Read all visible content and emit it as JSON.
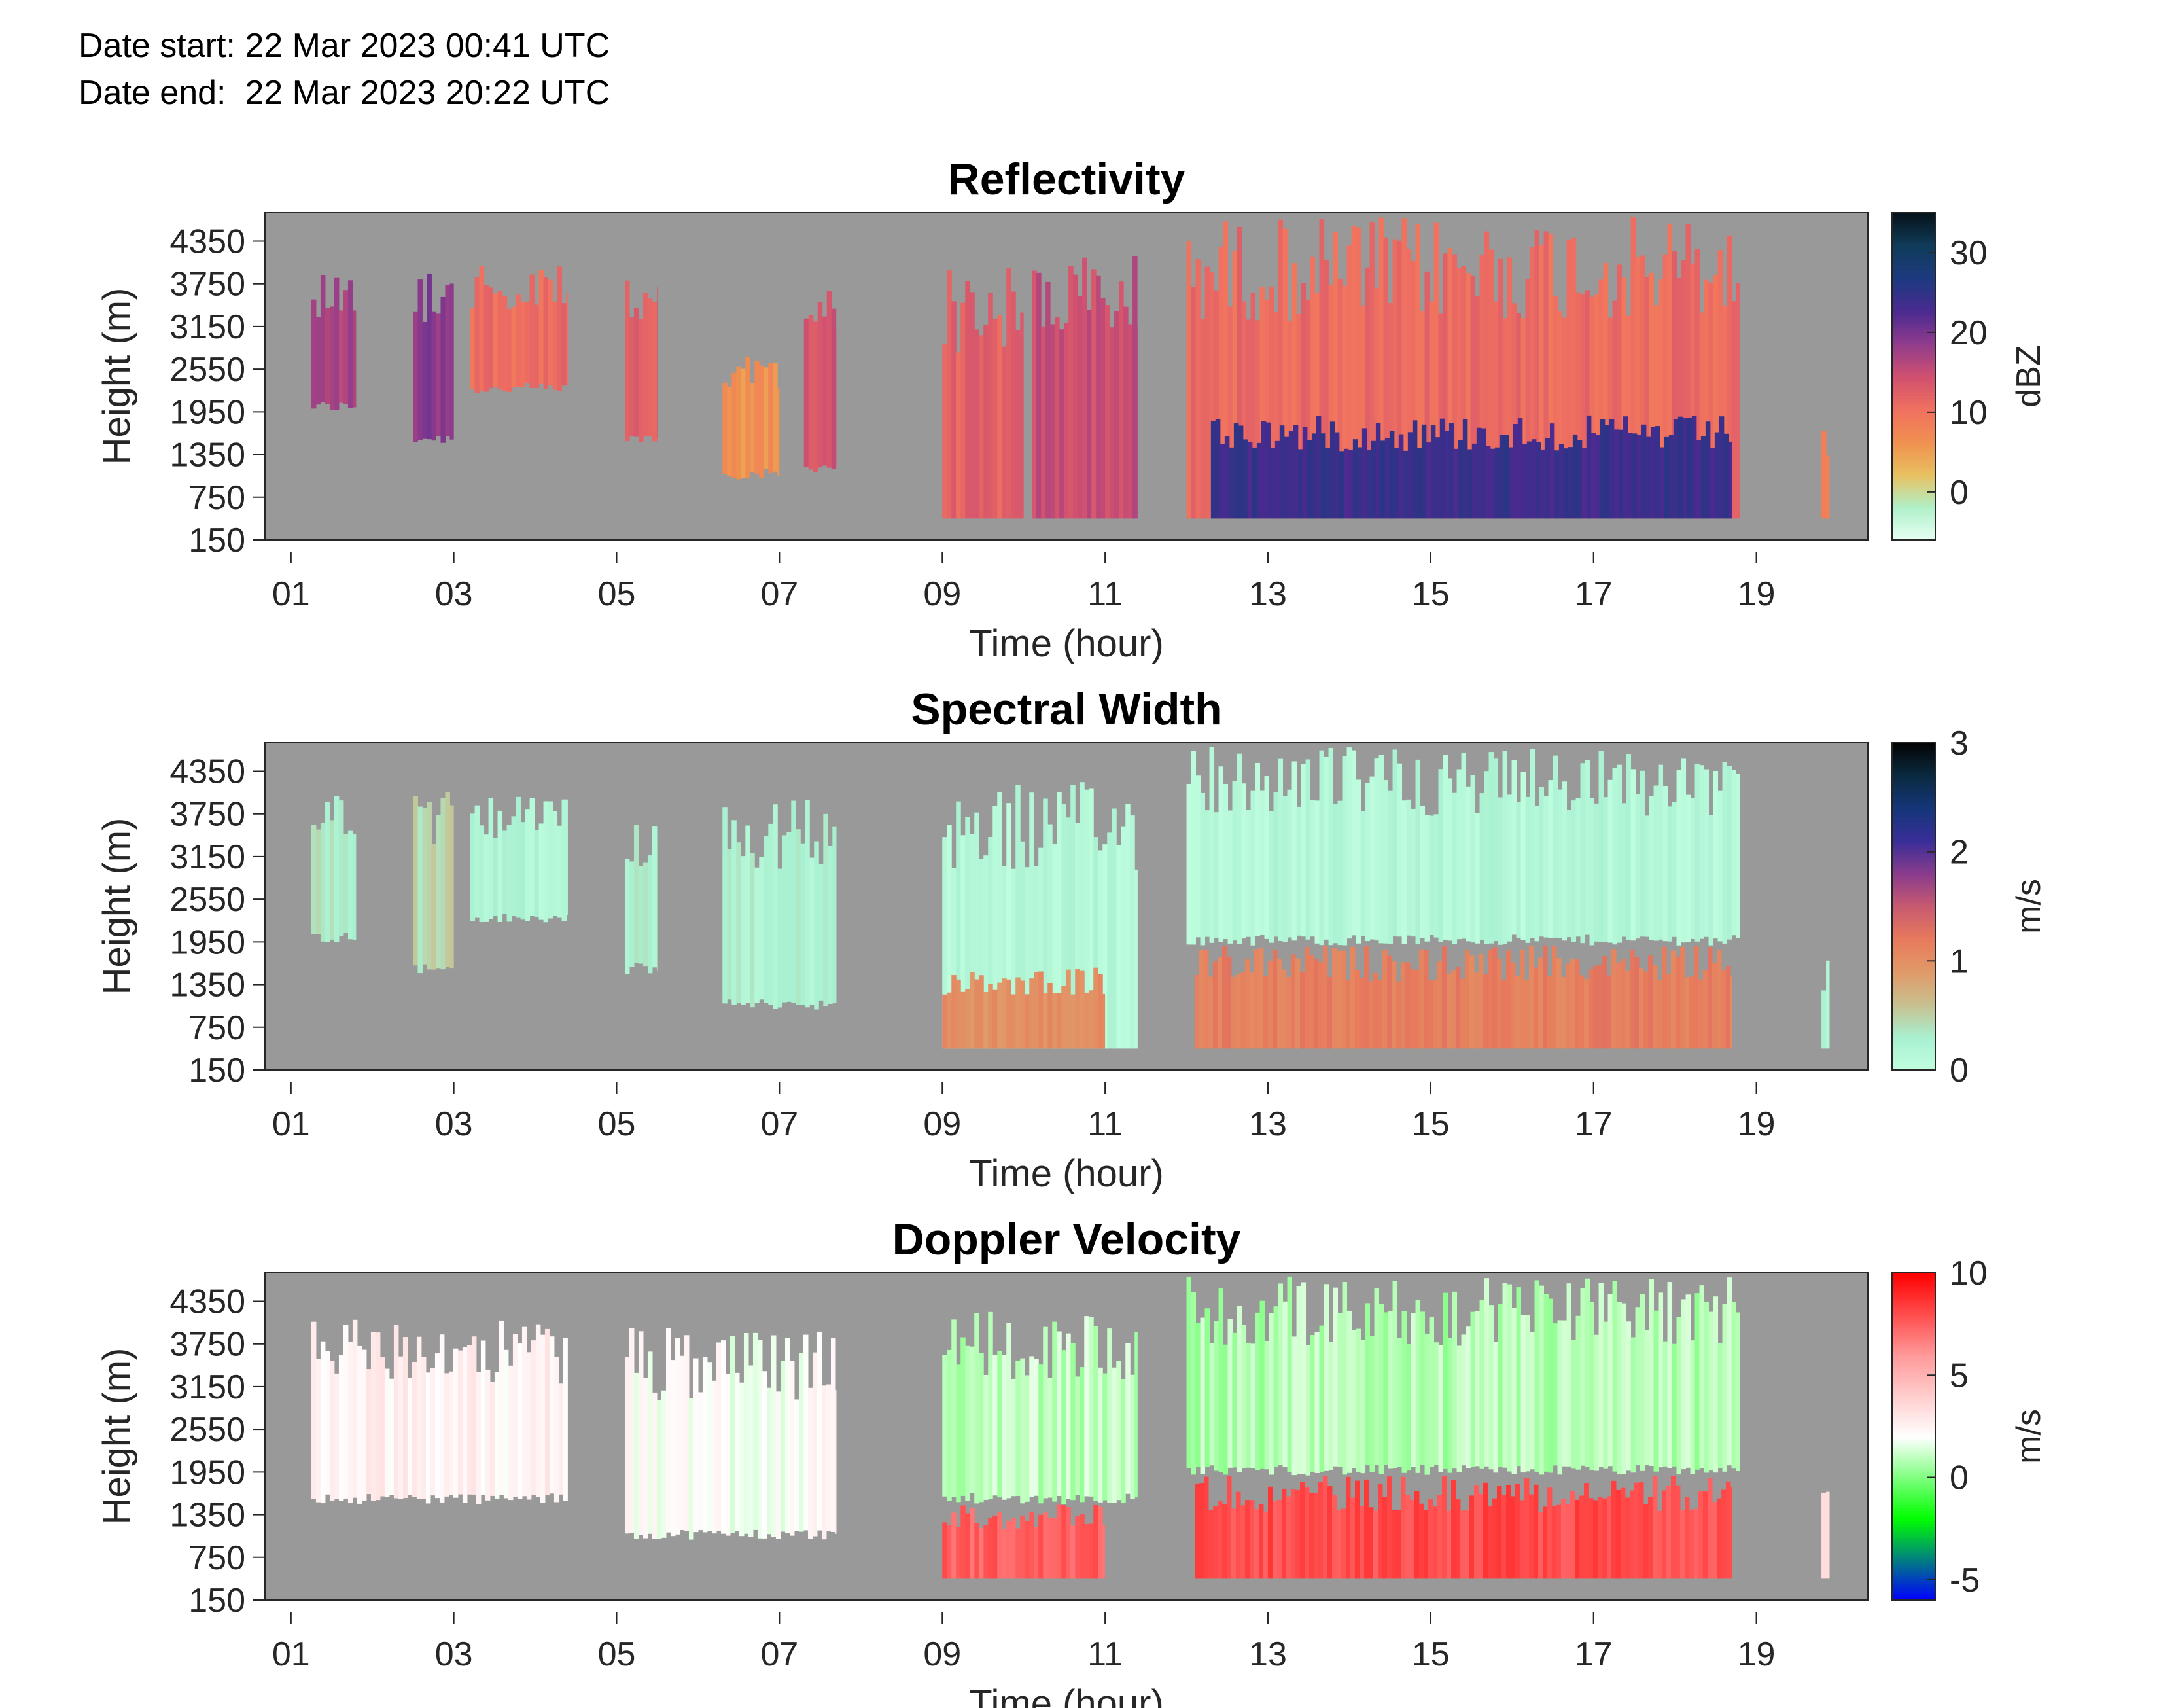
{
  "header": {
    "date_start": "Date start: 22 Mar 2023 00:41 UTC",
    "date_end": "Date end:  22 Mar 2023 20:22 UTC"
  },
  "colors": {
    "no_data": "#999999",
    "reflectivity_colormap": [
      "#e6fff4",
      "#b0f0c8",
      "#e8c060",
      "#f09050",
      "#f07060",
      "#d05070",
      "#903c8c",
      "#4a2a90",
      "#1c3a80",
      "#103c5a",
      "#06121a"
    ],
    "spectral_width_colormap": [
      "#c0ffe0",
      "#a8f0d0",
      "#c8c090",
      "#e09a68",
      "#e87a5c",
      "#c85a70",
      "#8a3c8c",
      "#3a2e98",
      "#14367a",
      "#0a2a40",
      "#040404"
    ],
    "doppler_colormap": [
      "#0000ff",
      "#00ff00",
      "#ffffff",
      "#ff9999",
      "#ff0000"
    ]
  },
  "chart_data": [
    {
      "type": "heatmap",
      "title": "Reflectivity",
      "xlabel": "Time (hour)",
      "ylabel": "Height (m)",
      "colorbar_label": "dBZ",
      "colorbar_ticks": [
        "0",
        "10",
        "20",
        "30"
      ],
      "colorbar_tick_values": [
        0,
        10,
        20,
        30
      ],
      "clim": [
        -6,
        35
      ],
      "x_tick_labels": [
        "01",
        "03",
        "05",
        "07",
        "09",
        "11",
        "13",
        "15",
        "17",
        "19"
      ],
      "x_tick_values": [
        1,
        3,
        5,
        7,
        9,
        11,
        13,
        15,
        17,
        19
      ],
      "xlim": [
        0.68,
        20.37
      ],
      "y_tick_labels": [
        "150",
        "750",
        "1350",
        "1950",
        "2550",
        "3150",
        "3750",
        "4350"
      ],
      "y_tick_values": [
        150,
        750,
        1350,
        1950,
        2550,
        3150,
        3750,
        4350
      ],
      "ylim": [
        150,
        4750
      ],
      "cells": [
        {
          "t0": 1.25,
          "t1": 1.8,
          "h0": 1950,
          "h1": 4000,
          "v": 17
        },
        {
          "t0": 2.5,
          "t1": 3.0,
          "h0": 1500,
          "h1": 4100,
          "v": 19
        },
        {
          "t0": 3.2,
          "t1": 4.4,
          "h0": 2200,
          "h1": 4000,
          "v": 11
        },
        {
          "t0": 5.1,
          "t1": 5.5,
          "h0": 1500,
          "h1": 3800,
          "v": 12
        },
        {
          "t0": 6.3,
          "t1": 7.0,
          "h0": 1000,
          "h1": 2800,
          "v": 6
        },
        {
          "t0": 7.3,
          "t1": 7.7,
          "h0": 1100,
          "h1": 4000,
          "v": 14
        },
        {
          "t0": 9.0,
          "t1": 10.0,
          "h0": 450,
          "h1": 4000,
          "v": 12
        },
        {
          "t0": 10.1,
          "t1": 11.4,
          "h0": 450,
          "h1": 4200,
          "v": 15
        },
        {
          "t0": 12.0,
          "t1": 18.8,
          "h0": 450,
          "h1": 4700,
          "v": 11
        },
        {
          "t0": 12.3,
          "t1": 18.7,
          "h0": 450,
          "h1": 1900,
          "v": 24
        },
        {
          "t0": 19.8,
          "t1": 19.9,
          "h0": 450,
          "h1": 1700,
          "v": 9
        }
      ]
    },
    {
      "type": "heatmap",
      "title": "Spectral Width",
      "xlabel": "Time (hour)",
      "ylabel": "Height (m)",
      "colorbar_label": "m/s",
      "colorbar_ticks": [
        "0",
        "1",
        "2",
        "3"
      ],
      "colorbar_tick_values": [
        0,
        1,
        2,
        3
      ],
      "clim": [
        0,
        3
      ],
      "x_tick_labels": [
        "01",
        "03",
        "05",
        "07",
        "09",
        "11",
        "13",
        "15",
        "17",
        "19"
      ],
      "x_tick_values": [
        1,
        3,
        5,
        7,
        9,
        11,
        13,
        15,
        17,
        19
      ],
      "xlim": [
        0.68,
        20.37
      ],
      "y_tick_labels": [
        "150",
        "750",
        "1350",
        "1950",
        "2550",
        "3150",
        "3750",
        "4350"
      ],
      "y_tick_values": [
        150,
        750,
        1350,
        1950,
        2550,
        3150,
        3750,
        4350
      ],
      "ylim": [
        150,
        4750
      ],
      "cells": [
        {
          "t0": 1.25,
          "t1": 1.8,
          "h0": 1950,
          "h1": 4000,
          "v": 0.35
        },
        {
          "t0": 2.5,
          "t1": 3.0,
          "h0": 1500,
          "h1": 4100,
          "v": 0.45
        },
        {
          "t0": 3.2,
          "t1": 4.4,
          "h0": 2200,
          "h1": 4000,
          "v": 0.2
        },
        {
          "t0": 5.1,
          "t1": 5.5,
          "h0": 1500,
          "h1": 3800,
          "v": 0.3
        },
        {
          "t0": 6.3,
          "t1": 7.7,
          "h0": 1000,
          "h1": 4000,
          "v": 0.25
        },
        {
          "t0": 9.0,
          "t1": 11.4,
          "h0": 450,
          "h1": 4200,
          "v": 0.15
        },
        {
          "t0": 9.0,
          "t1": 11.0,
          "h0": 450,
          "h1": 1600,
          "v": 1.0
        },
        {
          "t0": 12.0,
          "t1": 18.8,
          "h0": 1900,
          "h1": 4700,
          "v": 0.15
        },
        {
          "t0": 12.1,
          "t1": 18.7,
          "h0": 450,
          "h1": 1900,
          "v": 1.15
        },
        {
          "t0": 19.8,
          "t1": 19.9,
          "h0": 450,
          "h1": 1700,
          "v": 0.2
        }
      ]
    },
    {
      "type": "heatmap",
      "title": "Doppler Velocity",
      "xlabel": "Time (hour)",
      "ylabel": "Height (m)",
      "colorbar_label": "m/s",
      "colorbar_ticks": [
        "-5",
        "0",
        "5",
        "10"
      ],
      "colorbar_tick_values": [
        -5,
        0,
        5,
        10
      ],
      "clim": [
        -6,
        10
      ],
      "x_tick_labels": [
        "01",
        "03",
        "05",
        "07",
        "09",
        "11",
        "13",
        "15",
        "17",
        "19"
      ],
      "x_tick_values": [
        1,
        3,
        5,
        7,
        9,
        11,
        13,
        15,
        17,
        19
      ],
      "xlim": [
        0.68,
        20.37
      ],
      "y_tick_labels": [
        "150",
        "750",
        "1350",
        "1950",
        "2550",
        "3150",
        "3750",
        "4350"
      ],
      "y_tick_values": [
        150,
        750,
        1350,
        1950,
        2550,
        3150,
        3750,
        4350
      ],
      "ylim": [
        150,
        4750
      ],
      "cells": [
        {
          "t0": 1.25,
          "t1": 4.4,
          "h0": 1500,
          "h1": 4100,
          "v": 2.5
        },
        {
          "t0": 5.1,
          "t1": 7.7,
          "h0": 1000,
          "h1": 4000,
          "v": 2.0
        },
        {
          "t0": 9.0,
          "t1": 11.4,
          "h0": 1500,
          "h1": 4200,
          "v": 1.0
        },
        {
          "t0": 9.0,
          "t1": 11.0,
          "h0": 450,
          "h1": 1500,
          "v": 7.5
        },
        {
          "t0": 12.0,
          "t1": 18.8,
          "h0": 1900,
          "h1": 4700,
          "v": 0.8
        },
        {
          "t0": 12.1,
          "t1": 18.7,
          "h0": 450,
          "h1": 1900,
          "v": 8.0
        },
        {
          "t0": 19.8,
          "t1": 19.9,
          "h0": 450,
          "h1": 1700,
          "v": 3.0
        }
      ]
    }
  ]
}
